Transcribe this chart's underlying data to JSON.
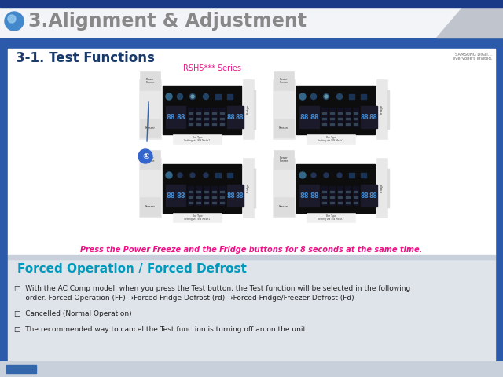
{
  "title": "3.Alignment & Adjustment",
  "subtitle": "3-1. Test Functions",
  "series_label": "RSH5*** Series",
  "press_text": "Press the Power Freeze and the Fridge buttons for 8 seconds at the same time.",
  "forced_title": "Forced Operation / Forced Defrost",
  "bullet1_line1": "□  With the AC Comp model, when you press the Test button, the Test function will be selected in the following",
  "bullet1_line2": "     order. Forced Operation (FF) →Forced Fridge Defrost (rd) →Forced Fridge/Freezer Defrost (Fd)",
  "bullet2": "□  Cancelled (Normal Operation)",
  "bullet3": "□  The recommended way to cancel the Test function is turning off an on the unit.",
  "bg_blue": "#2c5aaa",
  "bg_white": "#ffffff",
  "bg_gray": "#e0e4ec",
  "bg_light_gray": "#d8dce4",
  "header_bg": "#f0f2f5",
  "title_color": "#888888",
  "subtitle_color": "#1a3a6a",
  "series_color": "#ee1188",
  "press_color": "#ee1188",
  "forced_title_color": "#0099bb",
  "body_color": "#222222",
  "samsung_color": "#666666"
}
